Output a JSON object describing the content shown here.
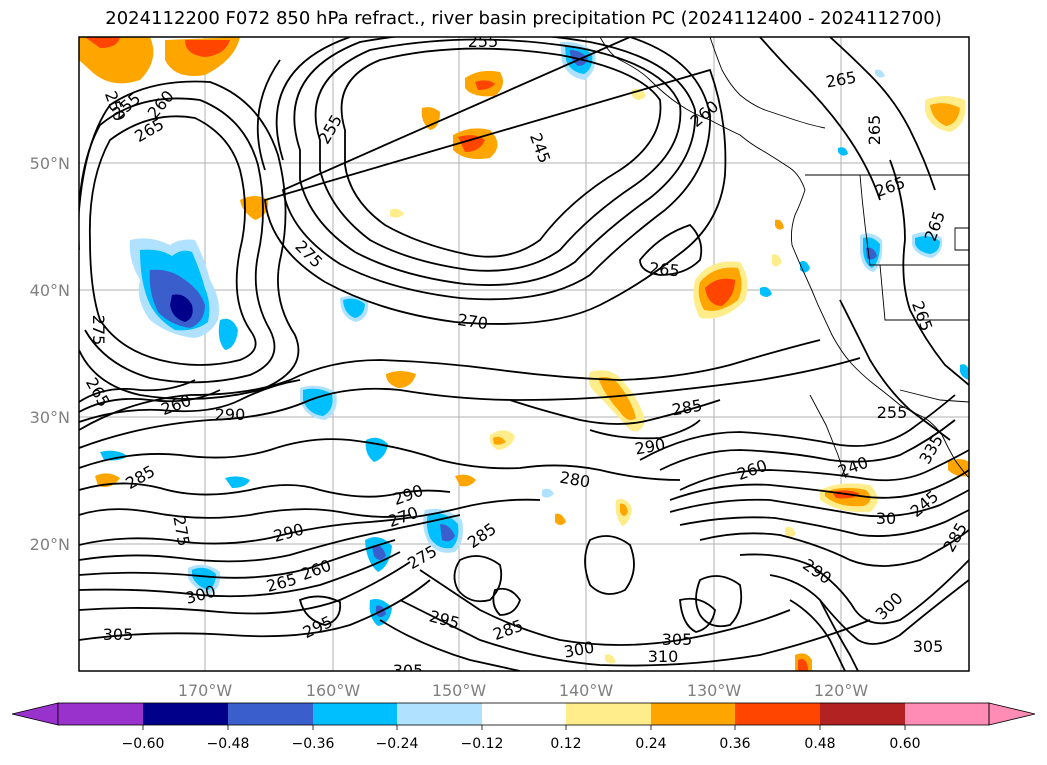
{
  "title": "2024112200 F072 850 hPa refract., river basin precipitation PC (2024112400 - 2024112700)",
  "map": {
    "lat_labels": [
      "50°N",
      "40°N",
      "30°N",
      "20°N"
    ],
    "lon_labels": [
      "170°W",
      "160°W",
      "150°W",
      "140°W",
      "130°W",
      "120°W"
    ],
    "contour_labels": [
      {
        "text": "250"
      },
      {
        "text": "255"
      },
      {
        "text": "260"
      },
      {
        "text": "265"
      },
      {
        "text": "255"
      },
      {
        "text": "255"
      },
      {
        "text": "245"
      },
      {
        "text": "260"
      },
      {
        "text": "265"
      },
      {
        "text": "265"
      },
      {
        "text": "265"
      },
      {
        "text": "265"
      },
      {
        "text": "275"
      },
      {
        "text": "265"
      },
      {
        "text": "270"
      },
      {
        "text": "265"
      },
      {
        "text": "275"
      },
      {
        "text": "265"
      },
      {
        "text": "260"
      },
      {
        "text": "290"
      },
      {
        "text": "285"
      },
      {
        "text": "255"
      },
      {
        "text": "290"
      },
      {
        "text": "260"
      },
      {
        "text": "240"
      },
      {
        "text": "285"
      },
      {
        "text": "280"
      },
      {
        "text": "290"
      },
      {
        "text": "290"
      },
      {
        "text": "270"
      },
      {
        "text": "285"
      },
      {
        "text": "275"
      },
      {
        "text": "260"
      },
      {
        "text": "265"
      },
      {
        "text": "300"
      },
      {
        "text": "305"
      },
      {
        "text": "295"
      },
      {
        "text": "295"
      },
      {
        "text": "285"
      },
      {
        "text": "300"
      },
      {
        "text": "305"
      },
      {
        "text": "310"
      },
      {
        "text": "290"
      },
      {
        "text": "300"
      },
      {
        "text": "305"
      },
      {
        "text": "305"
      },
      {
        "text": "275"
      },
      {
        "text": "335"
      },
      {
        "text": "245"
      },
      {
        "text": "30"
      },
      {
        "text": "285"
      }
    ]
  },
  "colorbar": {
    "colors": [
      "#9932cc",
      "#00008b",
      "#3a5fcd",
      "#00bfff",
      "#b0e2ff",
      "#ffffff",
      "#ffec8b",
      "#ffa500",
      "#ff4500",
      "#b22222",
      "#ff8cb4"
    ],
    "tick_labels": [
      "−0.60",
      "−0.48",
      "−0.36",
      "−0.24",
      "−0.12",
      "0.12",
      "0.24",
      "0.36",
      "0.48",
      "0.60"
    ]
  }
}
